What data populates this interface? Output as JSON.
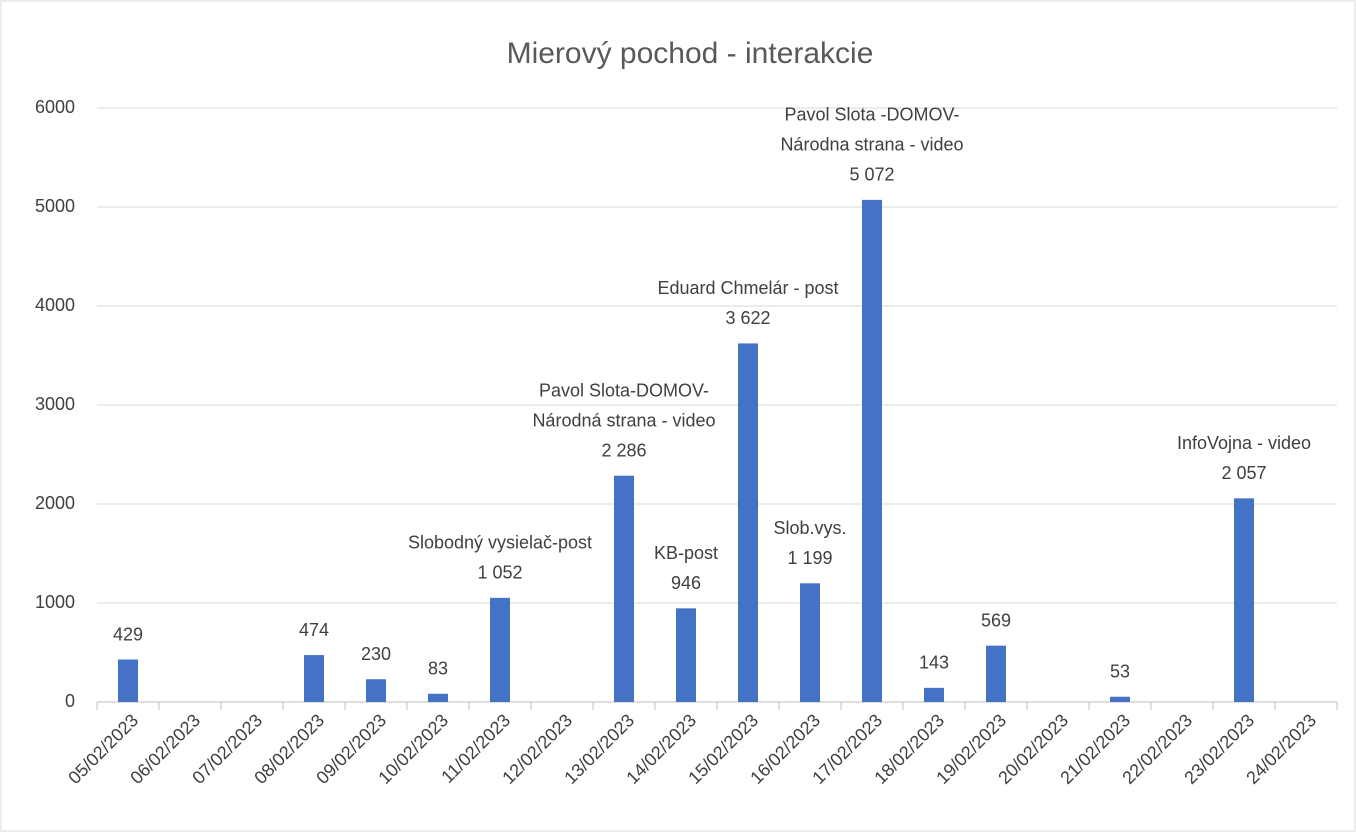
{
  "chart_data": {
    "type": "bar",
    "title": "Mierový pochod - interakcie",
    "categories": [
      "05/02/2023",
      "06/02/2023",
      "07/02/2023",
      "08/02/2023",
      "09/02/2023",
      "10/02/2023",
      "11/02/2023",
      "12/02/2023",
      "13/02/2023",
      "14/02/2023",
      "15/02/2023",
      "16/02/2023",
      "17/02/2023",
      "18/02/2023",
      "19/02/2023",
      "20/02/2023",
      "21/02/2023",
      "22/02/2023",
      "23/02/2023",
      "24/02/2023"
    ],
    "values": [
      429,
      null,
      null,
      474,
      230,
      83,
      1052,
      null,
      2286,
      946,
      3622,
      1199,
      5072,
      143,
      569,
      null,
      53,
      null,
      2057,
      null
    ],
    "value_labels": [
      "429",
      null,
      null,
      "474",
      "230",
      "83",
      "1 052",
      null,
      "2 286",
      "946",
      "3 622",
      "1 199",
      "5 072",
      "143",
      "569",
      null,
      "53",
      null,
      "2 057",
      null
    ],
    "annotations": [
      null,
      null,
      null,
      null,
      null,
      null,
      [
        "Slobodný vysielač-post"
      ],
      null,
      [
        "Pavol Slota-DOMOV-",
        "Národná strana - video"
      ],
      [
        "KB-post"
      ],
      [
        "Eduard Chmelár - post"
      ],
      [
        "Slob.vys."
      ],
      [
        "Pavol Slota -DOMOV-",
        "Národna strana - video"
      ],
      null,
      null,
      null,
      null,
      null,
      [
        "InfoVojna - video"
      ],
      null
    ],
    "color": "#4472c4",
    "ylim": [
      0,
      6000
    ],
    "yticks": [
      0,
      1000,
      2000,
      3000,
      4000,
      5000,
      6000
    ],
    "grid": true
  }
}
